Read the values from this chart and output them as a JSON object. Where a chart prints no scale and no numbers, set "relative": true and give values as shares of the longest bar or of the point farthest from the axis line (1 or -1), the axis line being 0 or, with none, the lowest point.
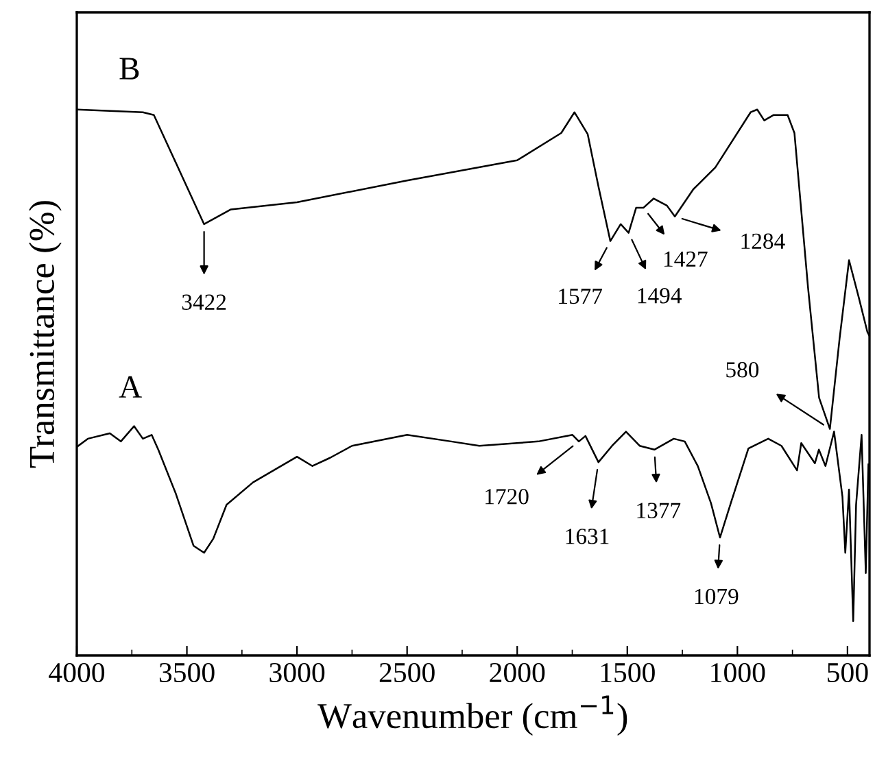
{
  "chart_data": {
    "type": "line",
    "relative": true,
    "xlabel": "Wavenumber (cm$^{−1}$)",
    "ylabel": "Transmittance (%)",
    "xlim": [
      4000,
      400
    ],
    "xticks": [
      4000,
      3500,
      3000,
      2500,
      2000,
      1500,
      1000,
      500
    ],
    "tick_labels": "x",
    "grid": false,
    "legend": false,
    "marker": "none",
    "line_style": "solid",
    "series": [
      {
        "name": "B",
        "color": "#000000",
        "x": [
          4000,
          3700,
          3650,
          3422,
          3300,
          3000,
          2500,
          2000,
          1800,
          1740,
          1680,
          1630,
          1577,
          1530,
          1494,
          1460,
          1427,
          1380,
          1320,
          1284,
          1200,
          1100,
          940,
          910,
          878,
          835,
          772,
          741,
          679,
          629,
          580,
          536,
          493,
          449,
          410,
          400
        ],
        "values": [
          1.0,
          0.995,
          0.99,
          0.79,
          0.817,
          0.83,
          0.87,
          0.907,
          0.957,
          0.995,
          0.955,
          0.857,
          0.759,
          0.79,
          0.774,
          0.82,
          0.82,
          0.837,
          0.824,
          0.804,
          0.854,
          0.894,
          0.995,
          1.0,
          0.98,
          0.99,
          0.99,
          0.957,
          0.673,
          0.472,
          0.415,
          0.58,
          0.724,
          0.656,
          0.593,
          0.585
        ]
      },
      {
        "name": "A",
        "color": "#000000",
        "x": [
          4000,
          3950,
          3850,
          3800,
          3740,
          3700,
          3660,
          3630,
          3550,
          3470,
          3422,
          3380,
          3320,
          3200,
          3000,
          2930,
          2850,
          2750,
          2500,
          2300,
          2172,
          1904,
          1749,
          1720,
          1690,
          1631,
          1569,
          1506,
          1444,
          1377,
          1289,
          1239,
          1180,
          1120,
          1079,
          1030,
          950,
          860,
          800,
          729,
          710,
          648,
          630,
          600,
          561,
          523,
          510,
          493,
          474,
          461,
          436,
          417,
          405
        ],
        "values": [
          0.382,
          0.397,
          0.407,
          0.392,
          0.42,
          0.397,
          0.404,
          0.377,
          0.296,
          0.201,
          0.188,
          0.214,
          0.276,
          0.317,
          0.364,
          0.347,
          0.362,
          0.384,
          0.404,
          0.392,
          0.384,
          0.392,
          0.404,
          0.392,
          0.402,
          0.354,
          0.384,
          0.41,
          0.384,
          0.377,
          0.397,
          0.392,
          0.347,
          0.279,
          0.216,
          0.279,
          0.379,
          0.397,
          0.384,
          0.339,
          0.389,
          0.352,
          0.377,
          0.347,
          0.41,
          0.291,
          0.188,
          0.304,
          0.063,
          0.276,
          0.404,
          0.151,
          0.35
        ]
      }
    ],
    "annotations": [
      {
        "text": "3422",
        "x": 3422,
        "y": 0.79
      },
      {
        "text": "1577",
        "x": 1577,
        "y": 0.759
      },
      {
        "text": "1494",
        "x": 1494,
        "y": 0.774
      },
      {
        "text": "1427",
        "x": 1427,
        "y": 0.82
      },
      {
        "text": "1284",
        "x": 1284,
        "y": 0.804
      },
      {
        "text": "580",
        "x": 580,
        "y": 0.415
      },
      {
        "text": "1720",
        "x": 1720,
        "y": 0.392
      },
      {
        "text": "1631",
        "x": 1631,
        "y": 0.354
      },
      {
        "text": "1377",
        "x": 1377,
        "y": 0.377
      },
      {
        "text": "1079",
        "x": 1079,
        "y": 0.216
      }
    ]
  }
}
